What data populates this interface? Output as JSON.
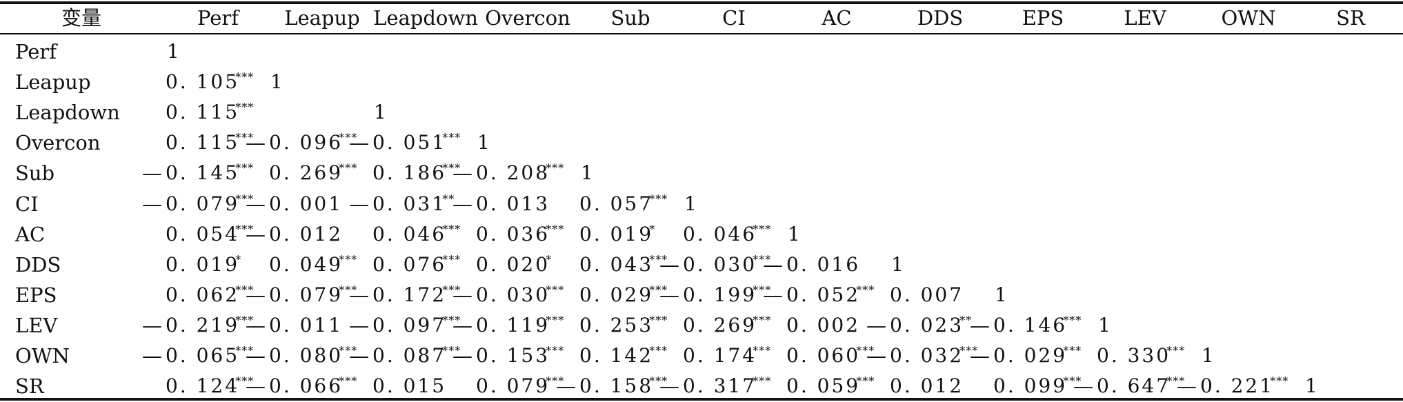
{
  "table": {
    "header": [
      "变量",
      "Perf",
      "Leapup",
      "Leapdown",
      "Overcon",
      "Sub",
      "CI",
      "AC",
      "DDS",
      "EPS",
      "LEV",
      "OWN",
      "SR"
    ],
    "rows": [
      {
        "label": "Perf",
        "cells": [
          "1"
        ]
      },
      {
        "label": "Leapup",
        "cells": [
          "0.105***",
          "1"
        ]
      },
      {
        "label": "Leapdown",
        "cells": [
          "0.115***",
          "",
          "1"
        ]
      },
      {
        "label": "Overcon",
        "cells": [
          "0.115***",
          "−0.096***",
          "−0.051***",
          "1"
        ]
      },
      {
        "label": "Sub",
        "cells": [
          "−0.145***",
          "0.269***",
          "0.186***",
          "−0.208***",
          "1"
        ]
      },
      {
        "label": "CI",
        "cells": [
          "−0.079***",
          "−0.001",
          "−0.031**",
          "−0.013",
          "0.057***",
          "1"
        ]
      },
      {
        "label": "AC",
        "cells": [
          "0.054***",
          "−0.012",
          "0.046***",
          "0.036***",
          "0.019*",
          "0.046***",
          "1"
        ]
      },
      {
        "label": "DDS",
        "cells": [
          "0.019*",
          "0.049***",
          "0.076***",
          "0.020*",
          "0.043***",
          "−0.030***",
          "−0.016",
          "1"
        ]
      },
      {
        "label": "EPS",
        "cells": [
          "0.062***",
          "−0.079***",
          "−0.172***",
          "−0.030***",
          "0.029***",
          "−0.199***",
          "−0.052***",
          "0.007",
          "1"
        ]
      },
      {
        "label": "LEV",
        "cells": [
          "−0.219***",
          "−0.011",
          "−0.097***",
          "−0.119***",
          "0.253***",
          "0.269***",
          "0.002",
          "−0.023**",
          "−0.146***",
          "1"
        ]
      },
      {
        "label": "OWN",
        "cells": [
          "−0.065***",
          "−0.080***",
          "−0.087***",
          "−0.153***",
          "0.142***",
          "0.174***",
          "0.060***",
          "−0.032***",
          "−0.029***",
          "0.330***",
          "1"
        ]
      },
      {
        "label": "SR",
        "cells": [
          "0.124***",
          "−0.066***",
          "0.015",
          "0.079***",
          "−0.158***",
          "−0.317***",
          "0.059***",
          "0.012",
          "0.099***",
          "−0.647***",
          "−0.221***",
          "1"
        ]
      }
    ]
  }
}
